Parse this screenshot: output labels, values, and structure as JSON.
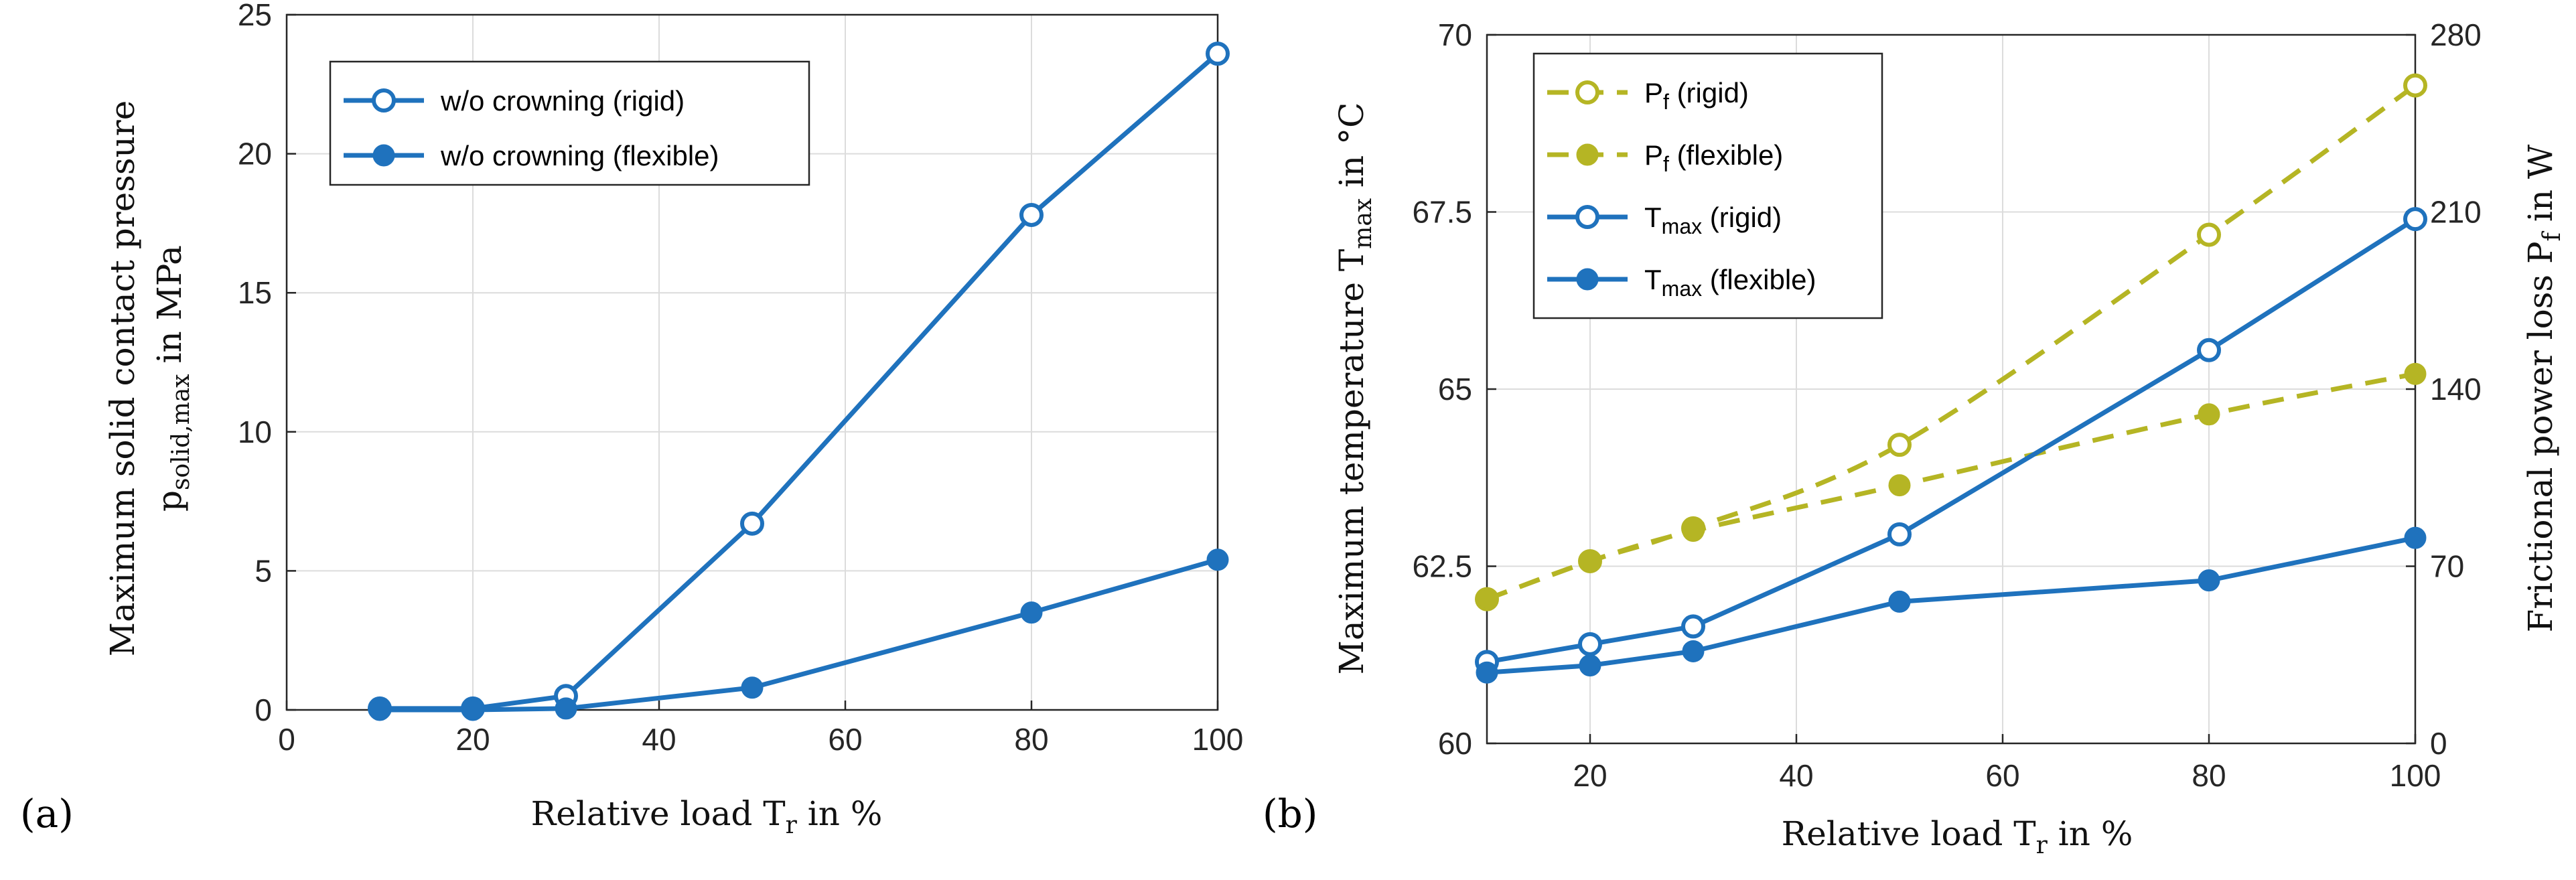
{
  "colors": {
    "blue": "#1f72bd",
    "olive": "#b5b524",
    "grid": "#dcdcdc",
    "axis": "#262626"
  },
  "chart_data": [
    {
      "panel_label": "(a)",
      "type": "line",
      "xlabel": {
        "main": "Relative load T",
        "sub": "r",
        "tail": " in %"
      },
      "ylabel": {
        "line1": "Maximum solid contact pressure",
        "line2_main": "p",
        "line2_sub": "solid,max",
        "line2_tail": " in MPa"
      },
      "xlim": [
        0,
        100
      ],
      "ylim": [
        0,
        25
      ],
      "xticks": [
        0,
        20,
        40,
        60,
        80,
        100
      ],
      "yticks": [
        0,
        5,
        10,
        15,
        20,
        25
      ],
      "grid": true,
      "legend_position": "top-left",
      "series": [
        {
          "name": "w/o crowning (rigid)",
          "marker": "open-circle",
          "line": "solid",
          "color": "#1f72bd",
          "x": [
            10,
            20,
            30,
            50,
            80,
            100
          ],
          "y": [
            0.05,
            0.05,
            0.5,
            6.7,
            17.8,
            23.6
          ]
        },
        {
          "name": "w/o crowning (flexible)",
          "marker": "filled-circle",
          "line": "solid",
          "color": "#1f72bd",
          "x": [
            10,
            20,
            30,
            50,
            80,
            100
          ],
          "y": [
            0.0,
            0.0,
            0.05,
            0.8,
            3.5,
            5.4
          ]
        }
      ]
    },
    {
      "panel_label": "(b)",
      "type": "line",
      "xlabel": {
        "main": "Relative load T",
        "sub": "r",
        "tail": " in %"
      },
      "ylabel_left": {
        "main": "Maximum temperature T",
        "sub": "max",
        "tail": " in °C"
      },
      "ylabel_right": {
        "main": "Frictional power loss P",
        "sub": "f",
        "tail": " in W"
      },
      "xlim": [
        10,
        100
      ],
      "ylim_left": [
        60,
        70
      ],
      "ylim_right": [
        0,
        280
      ],
      "xticks": [
        20,
        40,
        60,
        80,
        100
      ],
      "yticks_left": [
        "60",
        "62.5",
        "65",
        "67.5",
        "70"
      ],
      "yticks_right": [
        "0",
        "70",
        "140",
        "210",
        "280"
      ],
      "grid": true,
      "legend_position": "top-left",
      "series": [
        {
          "name_main": "P",
          "name_sub": "f",
          "name_tail": " (rigid)",
          "axis": "right",
          "marker": "open-circle",
          "line": "dashed",
          "color": "#b5b524",
          "x": [
            10,
            20,
            30,
            50,
            80,
            100
          ],
          "y": [
            57,
            72,
            85,
            118,
            201,
            260
          ]
        },
        {
          "name_main": "P",
          "name_sub": "f",
          "name_tail": " (flexible)",
          "axis": "right",
          "marker": "filled-circle",
          "line": "dashed",
          "color": "#b5b524",
          "x": [
            10,
            20,
            30,
            50,
            80,
            100
          ],
          "y": [
            57,
            72,
            84,
            102,
            130,
            146
          ]
        },
        {
          "name_main": "T",
          "name_sub": "max",
          "name_tail": " (rigid)",
          "axis": "left",
          "marker": "open-circle",
          "line": "solid",
          "color": "#1f72bd",
          "x": [
            10,
            20,
            30,
            50,
            80,
            100
          ],
          "y": [
            61.15,
            61.4,
            61.65,
            62.95,
            65.55,
            67.4
          ]
        },
        {
          "name_main": "T",
          "name_sub": "max",
          "name_tail": " (flexible)",
          "axis": "left",
          "marker": "filled-circle",
          "line": "solid",
          "color": "#1f72bd",
          "x": [
            10,
            20,
            30,
            50,
            80,
            100
          ],
          "y": [
            61.0,
            61.1,
            61.3,
            62.0,
            62.3,
            62.9
          ]
        }
      ]
    }
  ]
}
